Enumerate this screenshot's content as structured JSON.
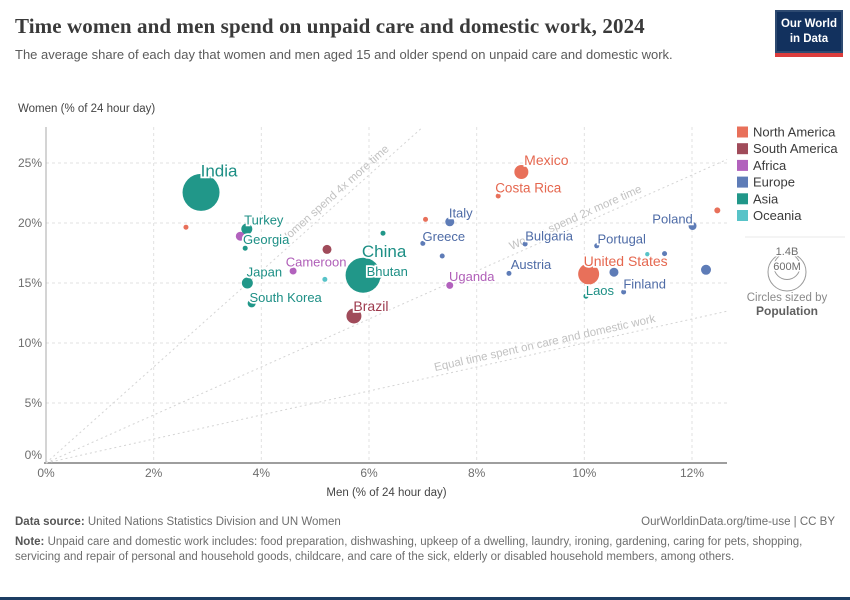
{
  "header": {
    "title": "Time women and men spend on unpaid care and domestic work, 2024",
    "subtitle": "The average share of each day that women and men aged 15 and older spend on unpaid care and domestic work.",
    "logo_line1": "Our World",
    "logo_line2": "in Data"
  },
  "chart_data": {
    "type": "scatter",
    "xlabel": "Men (% of 24 hour day)",
    "ylabel": "Women (% of 24 hour day)",
    "xlim": [
      0,
      12.65
    ],
    "ylim": [
      0,
      28
    ],
    "xtick_values": [
      0,
      2,
      4,
      6,
      8,
      10,
      12
    ],
    "xtick_labels": [
      "0%",
      "2%",
      "4%",
      "6%",
      "8%",
      "10%",
      "12%"
    ],
    "ytick_values": [
      0,
      5,
      10,
      15,
      20,
      25
    ],
    "ytick_labels": [
      "0%",
      "5%",
      "10%",
      "15%",
      "20%",
      "25%"
    ],
    "grid": true,
    "reference_lines": [
      {
        "slope": 4,
        "label": "Women spend 4x more time",
        "label_x": 5.45
      },
      {
        "slope": 2,
        "label": "Women spend 2x more time",
        "label_x": 9.9
      },
      {
        "slope": 1,
        "label": "Equal time spent on care and domestic work",
        "label_x": 9.3
      }
    ],
    "series": [
      {
        "name": "North America",
        "color": "#e8705a",
        "label_color": "#e5674f",
        "points": [
          {
            "country": "Mexico",
            "x": 8.83,
            "y": 24.25,
            "r": 7,
            "label_dx": 25,
            "label_dy": -12,
            "label_size": 14
          },
          {
            "country": "Costa Rica",
            "x": 8.4,
            "y": 22.25,
            "r": 2.5,
            "label_dx": 30,
            "label_dy": -8,
            "label_size": 13.5
          },
          {
            "country": "United States",
            "x": 10.08,
            "y": 15.75,
            "r": 10.5,
            "label_dx": 37,
            "label_dy": -13,
            "label_size": 14
          },
          {
            "country": "",
            "x": 2.6,
            "y": 19.65,
            "r": 2.5
          },
          {
            "country": "",
            "x": 7.05,
            "y": 20.3,
            "r": 2.5
          },
          {
            "country": "",
            "x": 12.47,
            "y": 21.05,
            "r": 3
          }
        ]
      },
      {
        "name": "South America",
        "color": "#a04b5a",
        "label_color": "#9d3a4d",
        "points": [
          {
            "country": "Brazil",
            "x": 5.72,
            "y": 12.25,
            "r": 7.5,
            "label_dx": 17,
            "label_dy": -10,
            "label_size": 14
          },
          {
            "country": "",
            "x": 5.22,
            "y": 17.8,
            "r": 4.5
          },
          {
            "country": "",
            "x": 5.9,
            "y": 14.7,
            "r": 2
          }
        ]
      },
      {
        "name": "Africa",
        "color": "#b262bd",
        "label_color": "#b05fb8",
        "points": [
          {
            "country": "Cameroon",
            "x": 4.59,
            "y": 16.0,
            "r": 3.5,
            "label_dx": 23,
            "label_dy": -9,
            "label_size": 13
          },
          {
            "country": "Uganda",
            "x": 7.5,
            "y": 14.8,
            "r": 3.5,
            "label_dx": 22,
            "label_dy": -9,
            "label_size": 13
          },
          {
            "country": "",
            "x": 3.61,
            "y": 18.9,
            "r": 4.5
          }
        ]
      },
      {
        "name": "Europe",
        "color": "#5e7cb7",
        "label_color": "#4e6ba6",
        "points": [
          {
            "country": "Italy",
            "x": 7.5,
            "y": 20.1,
            "r": 4.5,
            "label_dx": 11,
            "label_dy": -9,
            "label_size": 13
          },
          {
            "country": "Greece",
            "x": 7.0,
            "y": 18.3,
            "r": 2.5,
            "label_dx": 21,
            "label_dy": -7,
            "label_size": 13
          },
          {
            "country": "Bulgaria",
            "x": 8.9,
            "y": 18.25,
            "r": 2.5,
            "label_dx": 24,
            "label_dy": -8,
            "label_size": 13
          },
          {
            "country": "Austria",
            "x": 8.6,
            "y": 15.8,
            "r": 2.5,
            "label_dx": 22,
            "label_dy": -9,
            "label_size": 13
          },
          {
            "country": "Portugal",
            "x": 10.23,
            "y": 18.1,
            "r": 2.5,
            "label_dx": 25,
            "label_dy": -7,
            "label_size": 13
          },
          {
            "country": "Finland",
            "x": 10.73,
            "y": 14.25,
            "r": 2.5,
            "label_dx": 21,
            "label_dy": -8,
            "label_size": 13
          },
          {
            "country": "Poland",
            "x": 12.01,
            "y": 19.75,
            "r": 4,
            "label_dx": -20,
            "label_dy": -7,
            "label_size": 13
          },
          {
            "country": "",
            "x": 7.36,
            "y": 17.25,
            "r": 2.5
          },
          {
            "country": "",
            "x": 10.55,
            "y": 15.9,
            "r": 4.5
          },
          {
            "country": "",
            "x": 11.49,
            "y": 17.45,
            "r": 2.5
          },
          {
            "country": "",
            "x": 12.26,
            "y": 16.1,
            "r": 5
          }
        ]
      },
      {
        "name": "Asia",
        "color": "#219789",
        "label_color": "#1d8f85",
        "points": [
          {
            "country": "India",
            "x": 2.88,
            "y": 22.55,
            "r": 18.5,
            "label_dx": 18,
            "label_dy": -22,
            "label_size": 17
          },
          {
            "country": "Turkey",
            "x": 3.73,
            "y": 19.5,
            "r": 5.5,
            "label_dx": 17,
            "label_dy": -9,
            "label_size": 13
          },
          {
            "country": "Georgia",
            "x": 3.7,
            "y": 17.9,
            "r": 2.5,
            "label_dx": 21,
            "label_dy": -9,
            "label_size": 13
          },
          {
            "country": "Japan",
            "x": 3.74,
            "y": 15.0,
            "r": 5.5,
            "label_dx": 17,
            "label_dy": -11,
            "label_size": 13
          },
          {
            "country": "South Korea",
            "x": 3.82,
            "y": 13.3,
            "r": 4,
            "label_dx": 34,
            "label_dy": -6,
            "label_size": 13
          },
          {
            "country": "China",
            "x": 5.89,
            "y": 15.65,
            "r": 17.5,
            "label_dx": 21,
            "label_dy": -24,
            "label_size": 17
          },
          {
            "country": "Bhutan",
            "x": 6.19,
            "y": 15.55,
            "r": 2.5,
            "label_dx": 8,
            "label_dy": -5,
            "label_size": 13
          },
          {
            "country": "Laos",
            "x": 10.03,
            "y": 13.9,
            "r": 2.5,
            "label_dx": 14,
            "label_dy": -6,
            "label_size": 13
          },
          {
            "country": "",
            "x": 6.26,
            "y": 19.15,
            "r": 2.5
          }
        ]
      },
      {
        "name": "Oceania",
        "color": "#58c3c8",
        "label_color": "#58c3c8",
        "points": [
          {
            "country": "",
            "x": 5.18,
            "y": 15.3,
            "r": 2.5
          },
          {
            "country": "",
            "x": 11.17,
            "y": 17.4,
            "r": 2.2
          }
        ]
      }
    ]
  },
  "legend": {
    "items": [
      {
        "label": "North America",
        "color": "#e8705a"
      },
      {
        "label": "South America",
        "color": "#a04b5a"
      },
      {
        "label": "Africa",
        "color": "#b262bd"
      },
      {
        "label": "Europe",
        "color": "#5e7cb7"
      },
      {
        "label": "Asia",
        "color": "#219789"
      },
      {
        "label": "Oceania",
        "color": "#58c3c8"
      }
    ],
    "size_legend": {
      "big_value": "1.4B",
      "small_value": "600M",
      "caption": "Circles sized by",
      "caption_bold": "Population"
    }
  },
  "footer": {
    "source_label": "Data source:",
    "source_text": " United Nations Statistics Division and UN Women",
    "right_text": "OurWorldinData.org/time-use | CC BY",
    "note_label": "Note:",
    "note_text": " Unpaid care and domestic work includes: food preparation, dishwashing, upkeep of a dwelling, laundry, ironing, gardening, caring for pets, shopping, servicing and repair of personal and household goods, childcare, and care of the sick, elderly or disabled household members, among others."
  }
}
